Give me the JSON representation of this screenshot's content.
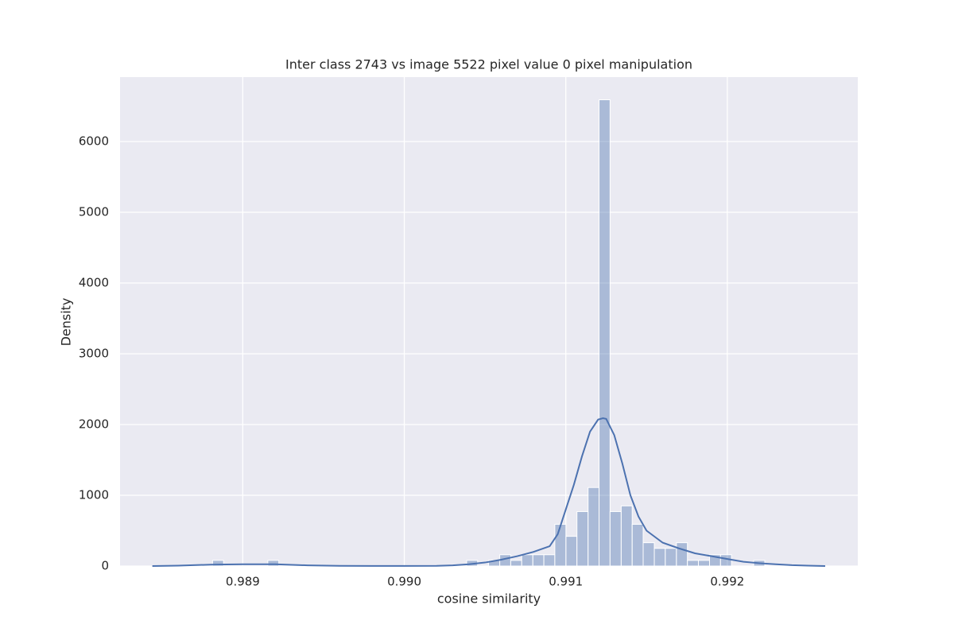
{
  "chart_data": {
    "type": "histogram",
    "title": "Inter class 2743 vs image 5522 pixel value 0 pixel manipulation",
    "x_label": "cosine similarity",
    "y_label": "Density",
    "bins": [
      0.988813,
      0.988881,
      0.98895,
      0.989018,
      0.989086,
      0.989155,
      0.989223,
      0.989292,
      0.98936,
      0.989428,
      0.989497,
      0.989565,
      0.989633,
      0.989702,
      0.98977,
      0.989839,
      0.989907,
      0.989975,
      0.990044,
      0.990112,
      0.99018,
      0.990249,
      0.990317,
      0.990386,
      0.990454,
      0.990522,
      0.990591,
      0.990659,
      0.990727,
      0.990796,
      0.990864,
      0.990932,
      0.991001,
      0.991069,
      0.991138,
      0.991206,
      0.991274,
      0.991343,
      0.991411,
      0.991479,
      0.991548,
      0.991616,
      0.991685,
      0.991753,
      0.991821,
      0.99189,
      0.991958,
      0.992026,
      0.992095,
      0.992163,
      0.992232
    ],
    "values": [
      80,
      0,
      0,
      0,
      0,
      80,
      0,
      0,
      0,
      0,
      0,
      0,
      0,
      0,
      0,
      0,
      0,
      0,
      0,
      0,
      0,
      0,
      0,
      80,
      0,
      80,
      160,
      80,
      160,
      160,
      160,
      590,
      420,
      770,
      1110,
      6590,
      770,
      850,
      590,
      330,
      250,
      250,
      330,
      80,
      80,
      160,
      160,
      0,
      0,
      80
    ],
    "color": "#4c72b0",
    "kde": {
      "color": "#4c72b0",
      "x": [
        0.98844,
        0.9886,
        0.9888,
        0.989,
        0.9892,
        0.9894,
        0.9896,
        0.9898,
        0.99,
        0.9902,
        0.9903,
        0.9904,
        0.9905,
        0.9906,
        0.9907,
        0.9908,
        0.9909,
        0.99095,
        0.991,
        0.99105,
        0.9911,
        0.99115,
        0.9912,
        0.99123,
        0.99125,
        0.9913,
        0.99135,
        0.9914,
        0.99145,
        0.9915,
        0.9916,
        0.9917,
        0.9918,
        0.9919,
        0.992,
        0.9921,
        0.9922,
        0.9923,
        0.9924,
        0.9925,
        0.992606
      ],
      "values": [
        0,
        5,
        20,
        25,
        25,
        10,
        3,
        1,
        1,
        3,
        10,
        25,
        50,
        90,
        140,
        200,
        280,
        450,
        800,
        1150,
        1550,
        1900,
        2070,
        2090,
        2080,
        1850,
        1450,
        1000,
        700,
        500,
        330,
        250,
        180,
        140,
        100,
        60,
        40,
        25,
        12,
        5,
        0
      ]
    },
    "xlim": [
      0.98824,
      0.992808
    ],
    "xticks": [
      0.989,
      {
        "value": 0.99,
        "label": "0.990"
      },
      0.991,
      0.992
    ],
    "ylim": [
      0,
      6910
    ],
    "yticks": [
      0,
      1000,
      2000,
      3000,
      4000,
      5000,
      6000
    ],
    "grid": true
  }
}
